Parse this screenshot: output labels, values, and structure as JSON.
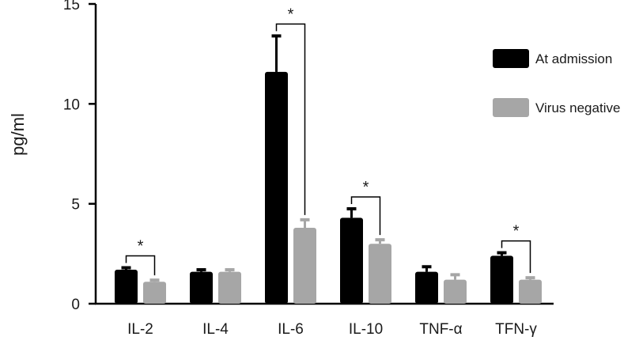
{
  "chart_data": {
    "type": "bar",
    "ylabel": "pg/ml",
    "ylim": [
      0,
      15
    ],
    "yticks": [
      0,
      5,
      10,
      15
    ],
    "categories": [
      "IL-2",
      "IL-4",
      "IL-6",
      "IL-10",
      "TNF-α",
      "TFN-γ"
    ],
    "series": [
      {
        "name": "At admission",
        "color": "#000000",
        "values": [
          1.7,
          1.6,
          11.6,
          4.3,
          1.6,
          2.4
        ],
        "errors": [
          0.1,
          0.1,
          1.8,
          0.45,
          0.25,
          0.15
        ]
      },
      {
        "name": "Virus negative",
        "color": "#a6a6a6",
        "values": [
          1.1,
          1.6,
          3.8,
          3.0,
          1.2,
          1.2
        ],
        "errors": [
          0.08,
          0.1,
          0.4,
          0.2,
          0.25,
          0.1
        ]
      }
    ],
    "significance": [
      {
        "category_index": 0,
        "label": "*"
      },
      {
        "category_index": 2,
        "label": "*"
      },
      {
        "category_index": 3,
        "label": "*"
      },
      {
        "category_index": 5,
        "label": "*"
      }
    ],
    "legend_position": "top-right",
    "grid": false
  }
}
